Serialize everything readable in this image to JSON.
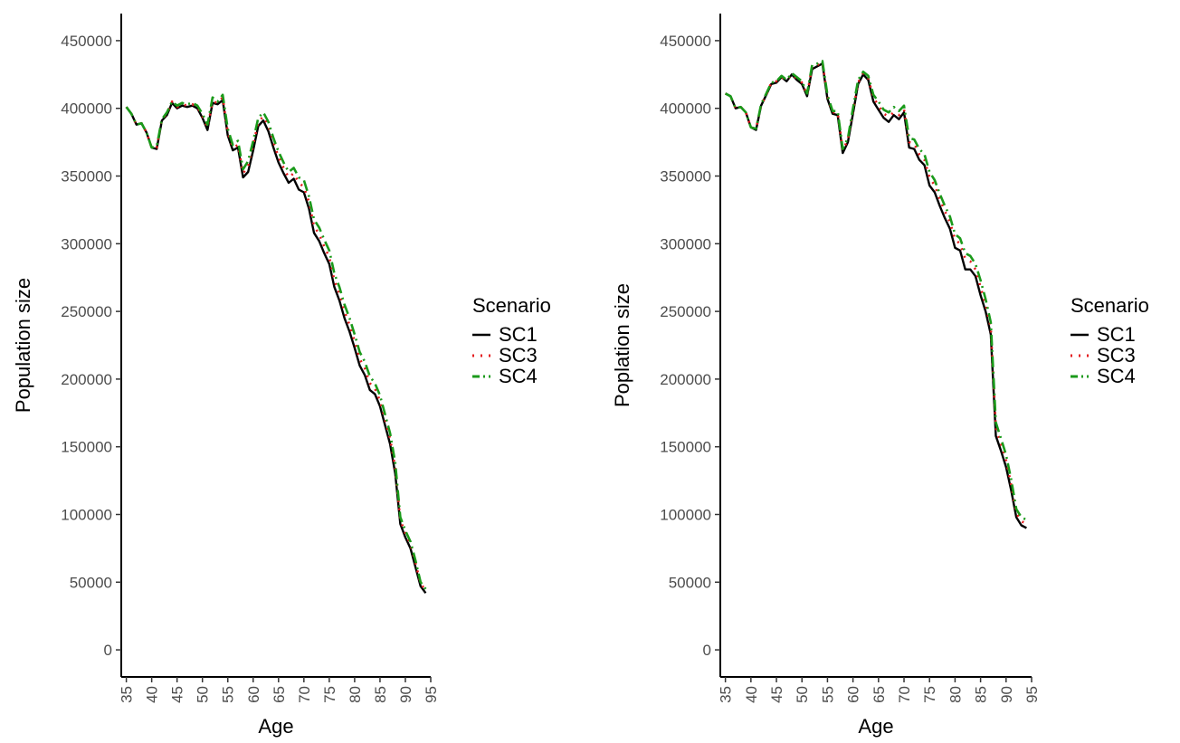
{
  "chart_data": [
    {
      "type": "line",
      "xlabel": "Age",
      "ylabel": "Population size",
      "xlim": [
        34,
        95
      ],
      "ylim": [
        -20000,
        470000
      ],
      "x_ticks": [
        "35",
        "40",
        "45",
        "50",
        "55",
        "60",
        "65",
        "70",
        "75",
        "80",
        "85",
        "90",
        "95"
      ],
      "y_ticks": [
        "0",
        "50000",
        "100000",
        "150000",
        "200000",
        "250000",
        "300000",
        "350000",
        "400000",
        "450000"
      ],
      "legend": {
        "title": "Scenario",
        "entries": [
          "SC1",
          "SC3",
          "SC4"
        ]
      },
      "x": [
        35,
        36,
        37,
        38,
        39,
        40,
        41,
        42,
        43,
        44,
        45,
        46,
        47,
        48,
        49,
        50,
        51,
        52,
        53,
        54,
        55,
        56,
        57,
        58,
        59,
        60,
        61,
        62,
        63,
        64,
        65,
        66,
        67,
        68,
        69,
        70,
        71,
        72,
        73,
        74,
        75,
        76,
        77,
        78,
        79,
        80,
        81,
        82,
        83,
        84,
        85,
        86,
        87,
        88,
        89,
        90,
        91,
        92,
        93,
        94
      ],
      "series": [
        {
          "name": "SC1",
          "color": "#000000",
          "values": [
            401000,
            396000,
            388000,
            389000,
            382000,
            371000,
            370000,
            391000,
            395000,
            404000,
            400000,
            402000,
            401000,
            402000,
            400000,
            393000,
            384000,
            404000,
            403000,
            406000,
            380000,
            369000,
            371000,
            349000,
            353000,
            369000,
            387000,
            391000,
            383000,
            371000,
            360000,
            352000,
            345000,
            348000,
            340000,
            338000,
            326000,
            308000,
            302000,
            293000,
            285000,
            268000,
            258000,
            245000,
            235000,
            223000,
            210000,
            203000,
            192000,
            189000,
            180000,
            166000,
            152000,
            130000,
            93000,
            83000,
            75000,
            61000,
            47000,
            42000
          ]
        },
        {
          "name": "SC3",
          "color": "#e41a1c",
          "values": [
            401000,
            396000,
            388000,
            389000,
            382000,
            371000,
            371000,
            392000,
            396000,
            405000,
            401000,
            403000,
            402000,
            403000,
            401000,
            394000,
            386000,
            405000,
            404000,
            408000,
            382000,
            371000,
            373000,
            352000,
            357000,
            373000,
            390000,
            394000,
            387000,
            375000,
            364000,
            356000,
            349000,
            352000,
            345000,
            342000,
            331000,
            313000,
            307000,
            298000,
            290000,
            273000,
            263000,
            250000,
            240000,
            228000,
            215000,
            208000,
            197000,
            193000,
            184000,
            170000,
            156000,
            134000,
            96000,
            86000,
            78000,
            64000,
            49000,
            44000
          ]
        },
        {
          "name": "SC4",
          "color": "#1a9a1a",
          "values": [
            401000,
            396000,
            388000,
            389000,
            382000,
            371000,
            372000,
            392000,
            397000,
            405000,
            402000,
            404000,
            403000,
            404000,
            402000,
            396000,
            388000,
            408000,
            405000,
            410000,
            385000,
            373000,
            376000,
            355000,
            361000,
            376000,
            393000,
            397000,
            390000,
            378000,
            368000,
            360000,
            353000,
            356000,
            349000,
            347000,
            335000,
            318000,
            312000,
            303000,
            295000,
            278000,
            268000,
            255000,
            245000,
            233000,
            220000,
            213000,
            202000,
            197000,
            188000,
            174000,
            160000,
            138000,
            98000,
            88000,
            80000,
            66000,
            50000,
            45000
          ]
        }
      ]
    },
    {
      "type": "line",
      "xlabel": "Age",
      "ylabel": "Poplation size",
      "xlim": [
        34,
        95
      ],
      "ylim": [
        -20000,
        470000
      ],
      "x_ticks": [
        "35",
        "40",
        "45",
        "50",
        "55",
        "60",
        "65",
        "70",
        "75",
        "80",
        "85",
        "90",
        "95"
      ],
      "y_ticks": [
        "0",
        "50000",
        "100000",
        "150000",
        "200000",
        "250000",
        "300000",
        "350000",
        "400000",
        "450000"
      ],
      "legend": {
        "title": "Scenario",
        "entries": [
          "SC1",
          "SC3",
          "SC4"
        ]
      },
      "x": [
        35,
        36,
        37,
        38,
        39,
        40,
        41,
        42,
        43,
        44,
        45,
        46,
        47,
        48,
        49,
        50,
        51,
        52,
        53,
        54,
        55,
        56,
        57,
        58,
        59,
        60,
        61,
        62,
        63,
        64,
        65,
        66,
        67,
        68,
        69,
        70,
        71,
        72,
        73,
        74,
        75,
        76,
        77,
        78,
        79,
        80,
        81,
        82,
        83,
        84,
        85,
        86,
        87,
        88,
        89,
        90,
        91,
        92,
        93,
        94
      ],
      "series": [
        {
          "name": "SC1",
          "color": "#000000",
          "values": [
            411000,
            409000,
            400000,
            401000,
            397000,
            386000,
            384000,
            402000,
            410000,
            418000,
            419000,
            423000,
            420000,
            425000,
            421000,
            418000,
            409000,
            429000,
            431000,
            433000,
            407000,
            396000,
            395000,
            367000,
            375000,
            396000,
            418000,
            425000,
            421000,
            405000,
            399000,
            393000,
            390000,
            395000,
            392000,
            397000,
            371000,
            370000,
            362000,
            358000,
            343000,
            338000,
            328000,
            319000,
            311000,
            297000,
            295000,
            281000,
            281000,
            276000,
            262000,
            250000,
            233000,
            158000,
            147000,
            135000,
            118000,
            98000,
            92000,
            90000
          ]
        },
        {
          "name": "SC3",
          "color": "#e41a1c",
          "values": [
            411000,
            409000,
            400000,
            401000,
            397000,
            386000,
            385000,
            402000,
            410000,
            419000,
            420000,
            423000,
            421000,
            425000,
            422000,
            419000,
            410000,
            431000,
            432000,
            434000,
            409000,
            397000,
            397000,
            369000,
            377000,
            398000,
            419000,
            426000,
            422000,
            408000,
            402000,
            396000,
            394000,
            397000,
            395000,
            399000,
            375000,
            374000,
            366000,
            362000,
            349000,
            343000,
            333000,
            324000,
            316000,
            303000,
            300000,
            289000,
            287000,
            281000,
            268000,
            255000,
            238000,
            164000,
            152000,
            140000,
            122000,
            101000,
            95000,
            93000
          ]
        },
        {
          "name": "SC4",
          "color": "#1a9a1a",
          "values": [
            411000,
            409000,
            400000,
            401000,
            397000,
            386000,
            385000,
            403000,
            411000,
            419000,
            420000,
            424000,
            421000,
            426000,
            423000,
            420000,
            411000,
            432000,
            433000,
            435000,
            410000,
            398000,
            398000,
            370000,
            378000,
            400000,
            421000,
            427000,
            424000,
            410000,
            405000,
            399000,
            397000,
            401000,
            398000,
            402000,
            378000,
            377000,
            370000,
            366000,
            353000,
            347000,
            337000,
            328000,
            320000,
            307000,
            304000,
            293000,
            291000,
            285000,
            273000,
            259000,
            242000,
            168000,
            156000,
            144000,
            126000,
            104000,
            98000,
            96000
          ]
        }
      ]
    }
  ]
}
